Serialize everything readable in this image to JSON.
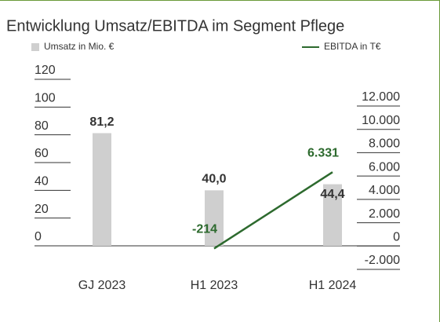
{
  "chart_data": {
    "type": "bar",
    "title": "Entwicklung Umsatz/EBITDA im Segment Pflege",
    "categories": [
      "GJ 2023",
      "H1 2023",
      "H1 2024"
    ],
    "series": [
      {
        "name": "Umsatz in Mio. €",
        "type": "bar",
        "color": "#cfcfcf",
        "values": [
          81.2,
          40.0,
          44.4
        ],
        "value_labels": [
          "81,2",
          "40,0",
          "44,4"
        ]
      },
      {
        "name": "EBITDA in T€",
        "type": "line",
        "axis": "y2",
        "color": "#2d6a2e",
        "values": [
          null,
          -214,
          6331
        ],
        "value_labels": [
          null,
          "-214",
          "6.331"
        ]
      }
    ],
    "ylim": [
      0,
      120
    ],
    "yticks": [
      0,
      20,
      40,
      60,
      80,
      100,
      120
    ],
    "y2lim": [
      -2000,
      12000
    ],
    "y2ticks": [
      {
        "value": -2000,
        "label": "-2.000"
      },
      0,
      {
        "value": 2000,
        "label": "2.000"
      },
      {
        "value": 4000,
        "label": "4.000"
      },
      {
        "value": 6000,
        "label": "6.000"
      },
      {
        "value": 8000,
        "label": "8.000"
      },
      {
        "value": 10000,
        "label": "10.000"
      },
      {
        "value": 12000,
        "label": "12.000"
      }
    ],
    "legend": "top"
  }
}
